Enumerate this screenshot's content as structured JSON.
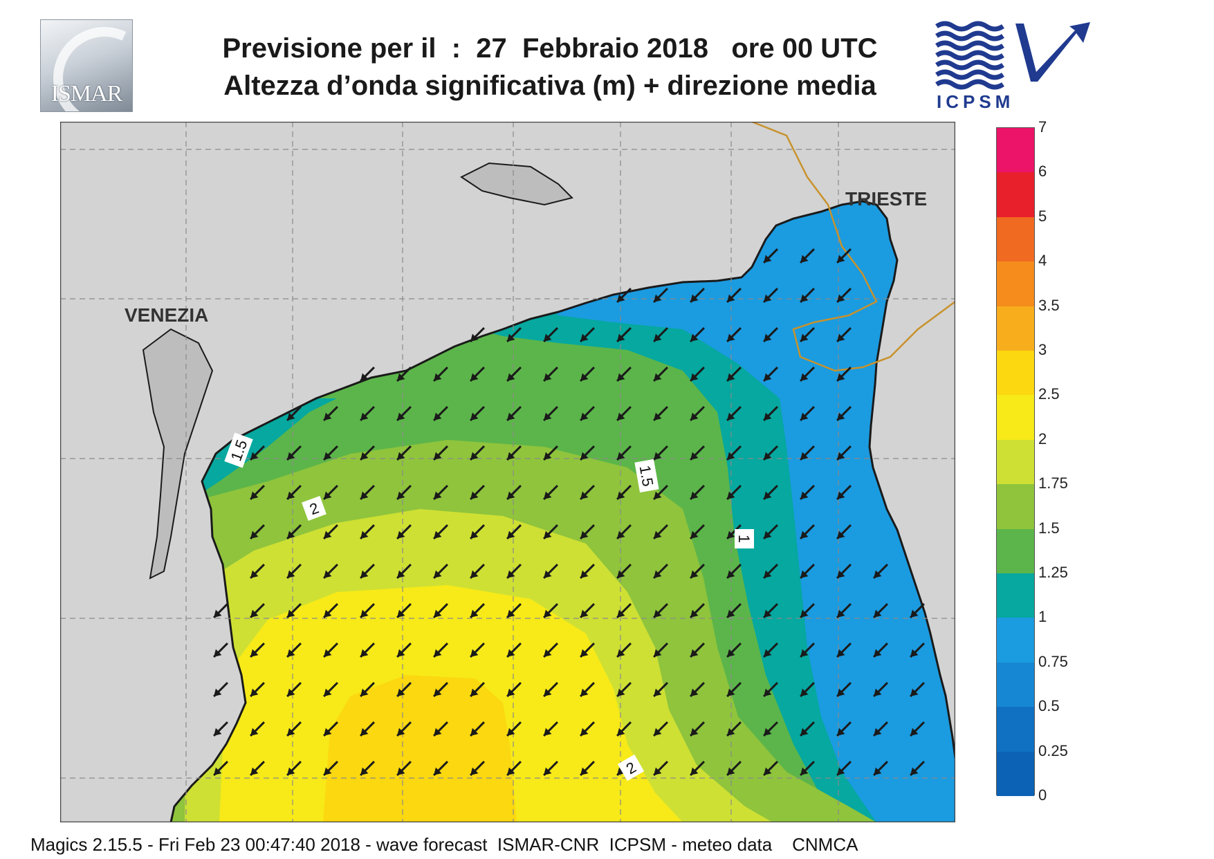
{
  "header": {
    "title_line1": "Previsione per il  :  27  Febbraio 2018   ore 00 UTC",
    "title_line2": "Altezza d’onda significativa (m) + direzione media",
    "logo_left_text": "ISMAR",
    "logo_right_text": "ICPSM"
  },
  "map": {
    "cities": [
      {
        "name": "VENEZIA"
      },
      {
        "name": "TRIESTE"
      }
    ],
    "contour_labels": [
      "1.5",
      "2",
      "1.5",
      "1",
      "2"
    ],
    "colors": {
      "land": "#d3d3d3",
      "coast": "#1a1a1a",
      "border": "#c8922c",
      "grid": "#8a8a8a"
    },
    "arrow_direction": "south-west"
  },
  "legend": {
    "title": "",
    "bins": [
      {
        "label": "0",
        "color": "#0c62b4"
      },
      {
        "label": "0.25",
        "color": "#1070c2"
      },
      {
        "label": "0.5",
        "color": "#1687d2"
      },
      {
        "label": "0.75",
        "color": "#1b9be0"
      },
      {
        "label": "1",
        "color": "#06a89f"
      },
      {
        "label": "1.25",
        "color": "#5cb54a"
      },
      {
        "label": "1.5",
        "color": "#8fc43c"
      },
      {
        "label": "1.75",
        "color": "#cee034"
      },
      {
        "label": "2",
        "color": "#f7ea18"
      },
      {
        "label": "2.5",
        "color": "#fbd810"
      },
      {
        "label": "3",
        "color": "#f8ad1c"
      },
      {
        "label": "3.5",
        "color": "#f58c1c"
      },
      {
        "label": "4",
        "color": "#f06a22"
      },
      {
        "label": "5",
        "color": "#e8202c"
      },
      {
        "label": "6",
        "color": "#ec1468"
      },
      {
        "label": "7",
        "color": ""
      }
    ]
  },
  "footer": {
    "text": "Magics 2.15.5 - Fri Feb 23 00:47:40 2018 - wave forecast  ISMAR-CNR  ICPSM - meteo data    CNMCA"
  }
}
